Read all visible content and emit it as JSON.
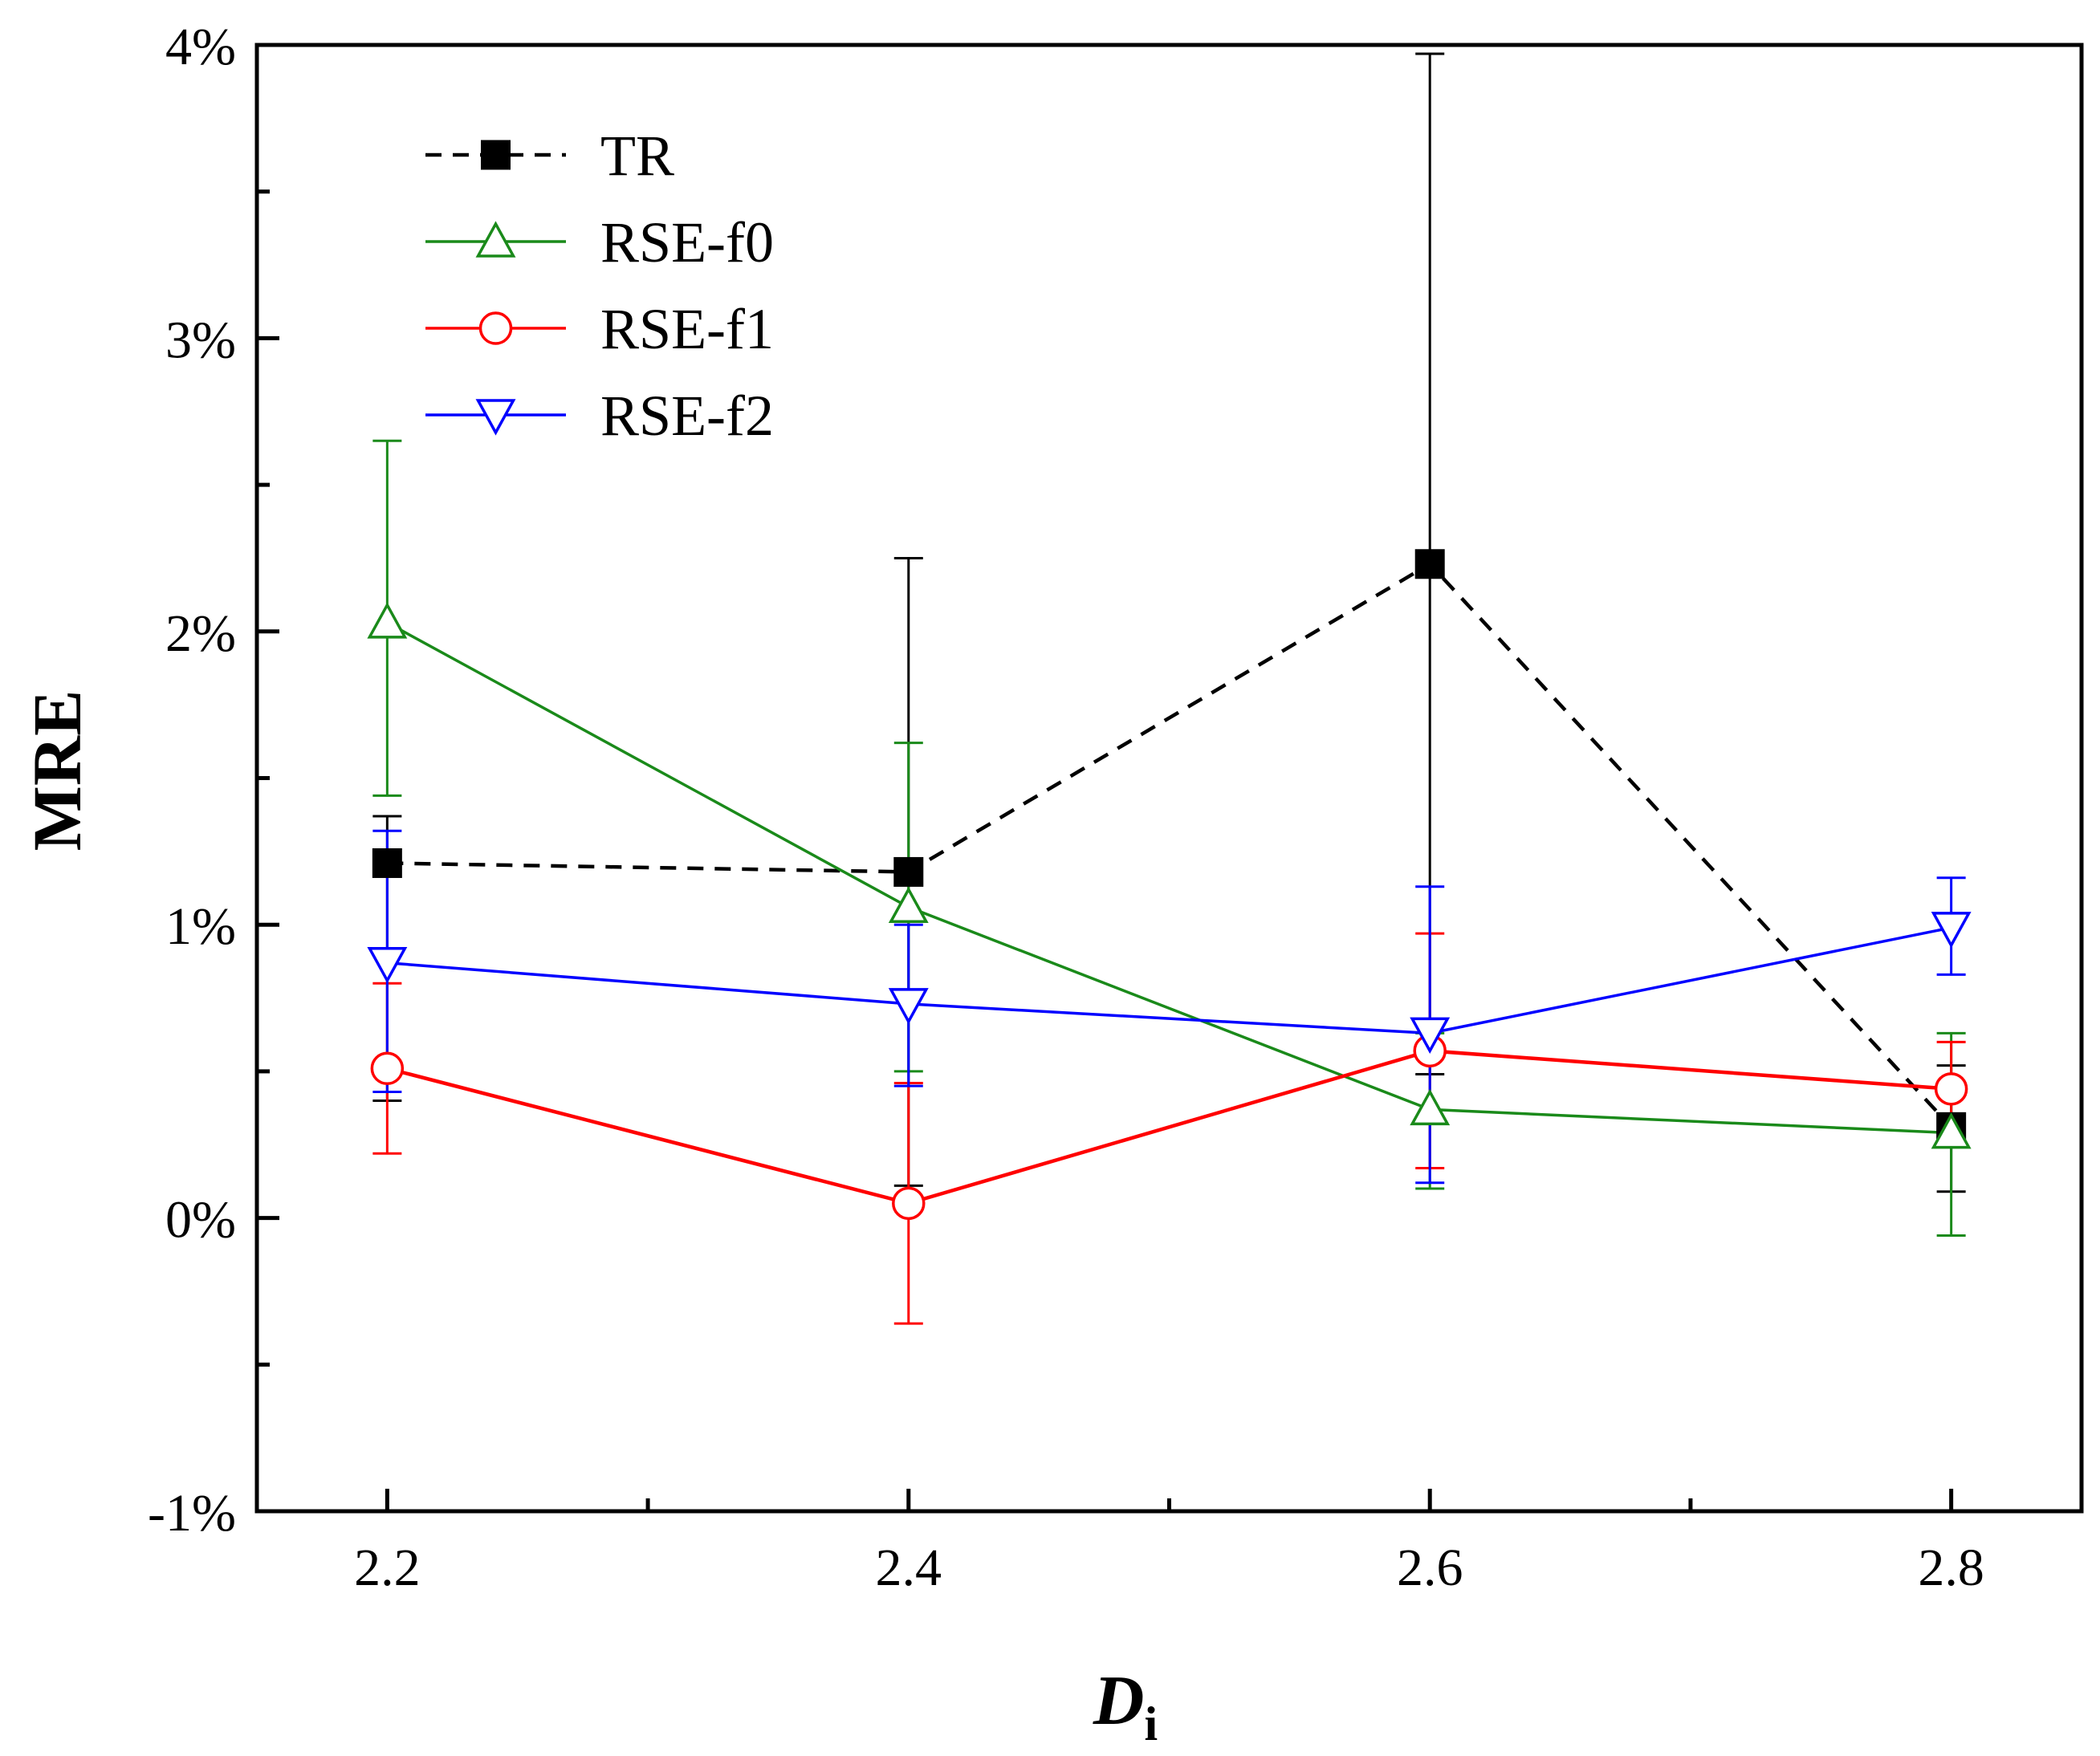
{
  "chart_data": {
    "type": "line",
    "title": "",
    "xlabel": "D",
    "xlabel_subscript": "i",
    "ylabel": "MRE",
    "x": [
      2.2,
      2.4,
      2.6,
      2.8
    ],
    "xlim": [
      2.15,
      2.85
    ],
    "ylim": [
      -1,
      4
    ],
    "x_ticks": [
      2.2,
      2.4,
      2.6,
      2.8
    ],
    "x_tick_labels": [
      "2.2",
      "2.4",
      "2.6",
      "2.8"
    ],
    "y_ticks": [
      -1,
      0,
      1,
      2,
      3,
      4
    ],
    "y_tick_labels": [
      "-1%",
      "0%",
      "1%",
      "2%",
      "3%",
      "4%"
    ],
    "y_unit": "percent",
    "grid": false,
    "legend_position": "top-left",
    "series": [
      {
        "name": "TR",
        "color": "#000000",
        "marker": "filled-square",
        "line_style": "dashed",
        "values": [
          1.21,
          1.18,
          2.23,
          0.31
        ],
        "error_low": [
          0.4,
          0.11,
          0.49,
          0.09
        ],
        "error_high": [
          1.37,
          2.25,
          3.97,
          0.52
        ]
      },
      {
        "name": "RSE-f0",
        "color": "#1a8a1a",
        "marker": "open-triangle-up",
        "line_style": "solid",
        "values": [
          2.03,
          1.06,
          0.37,
          0.29
        ],
        "error_low": [
          1.44,
          0.5,
          0.1,
          -0.06
        ],
        "error_high": [
          2.65,
          1.62,
          0.63,
          0.63
        ]
      },
      {
        "name": "RSE-f1",
        "color": "#ff0000",
        "marker": "open-circle",
        "line_style": "solid",
        "values": [
          0.51,
          0.05,
          0.57,
          0.44
        ],
        "error_low": [
          0.22,
          -0.36,
          0.17,
          0.29
        ],
        "error_high": [
          0.8,
          0.46,
          0.97,
          0.6
        ]
      },
      {
        "name": "RSE-f2",
        "color": "#0000ff",
        "marker": "open-triangle-down",
        "line_style": "solid",
        "values": [
          0.87,
          0.73,
          0.63,
          0.99
        ],
        "error_low": [
          0.43,
          0.45,
          0.12,
          0.83
        ],
        "error_high": [
          1.32,
          1.0,
          1.13,
          1.16
        ]
      }
    ]
  }
}
